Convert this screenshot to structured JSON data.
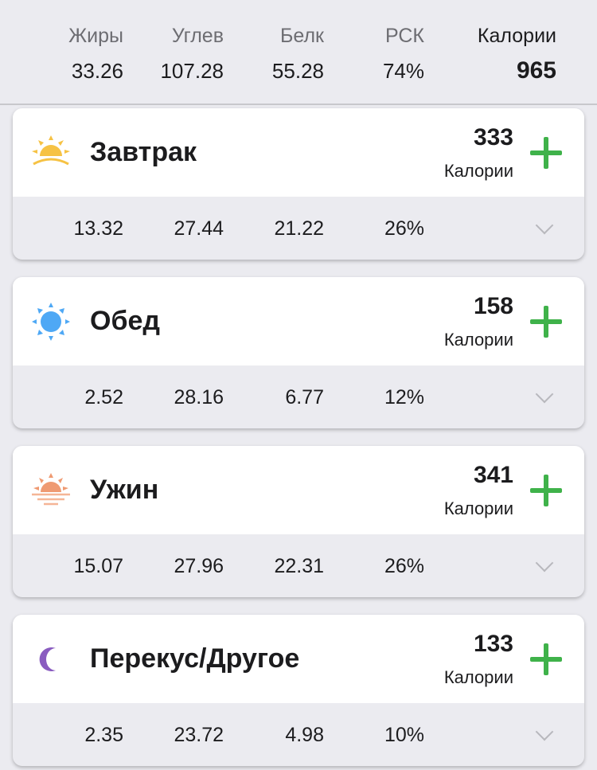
{
  "summary": {
    "labels": [
      "Жиры",
      "Углев",
      "Белк",
      "РСК",
      "Калории"
    ],
    "values": [
      "33.26",
      "107.28",
      "55.28",
      "74%",
      "965"
    ]
  },
  "meals": [
    {
      "name": "Завтрак",
      "icon": "sunrise-icon",
      "calories": "333",
      "calories_label": "Калории",
      "macros": [
        "13.32",
        "27.44",
        "21.22",
        "26%"
      ]
    },
    {
      "name": "Обед",
      "icon": "sun-icon",
      "calories": "158",
      "calories_label": "Калории",
      "macros": [
        "2.52",
        "28.16",
        "6.77",
        "12%"
      ]
    },
    {
      "name": "Ужин",
      "icon": "sunset-icon",
      "calories": "341",
      "calories_label": "Калории",
      "macros": [
        "15.07",
        "27.96",
        "22.31",
        "26%"
      ]
    },
    {
      "name": "Перекус/Другое",
      "icon": "moon-icon",
      "calories": "133",
      "calories_label": "Калории",
      "macros": [
        "2.35",
        "23.72",
        "4.98",
        "10%"
      ]
    }
  ],
  "colors": {
    "accent": "#3fb24a",
    "sunrise": "#f6c244",
    "sun": "#4ea8f5",
    "sunset": "#ef9a72",
    "moon": "#8a5cc0"
  }
}
